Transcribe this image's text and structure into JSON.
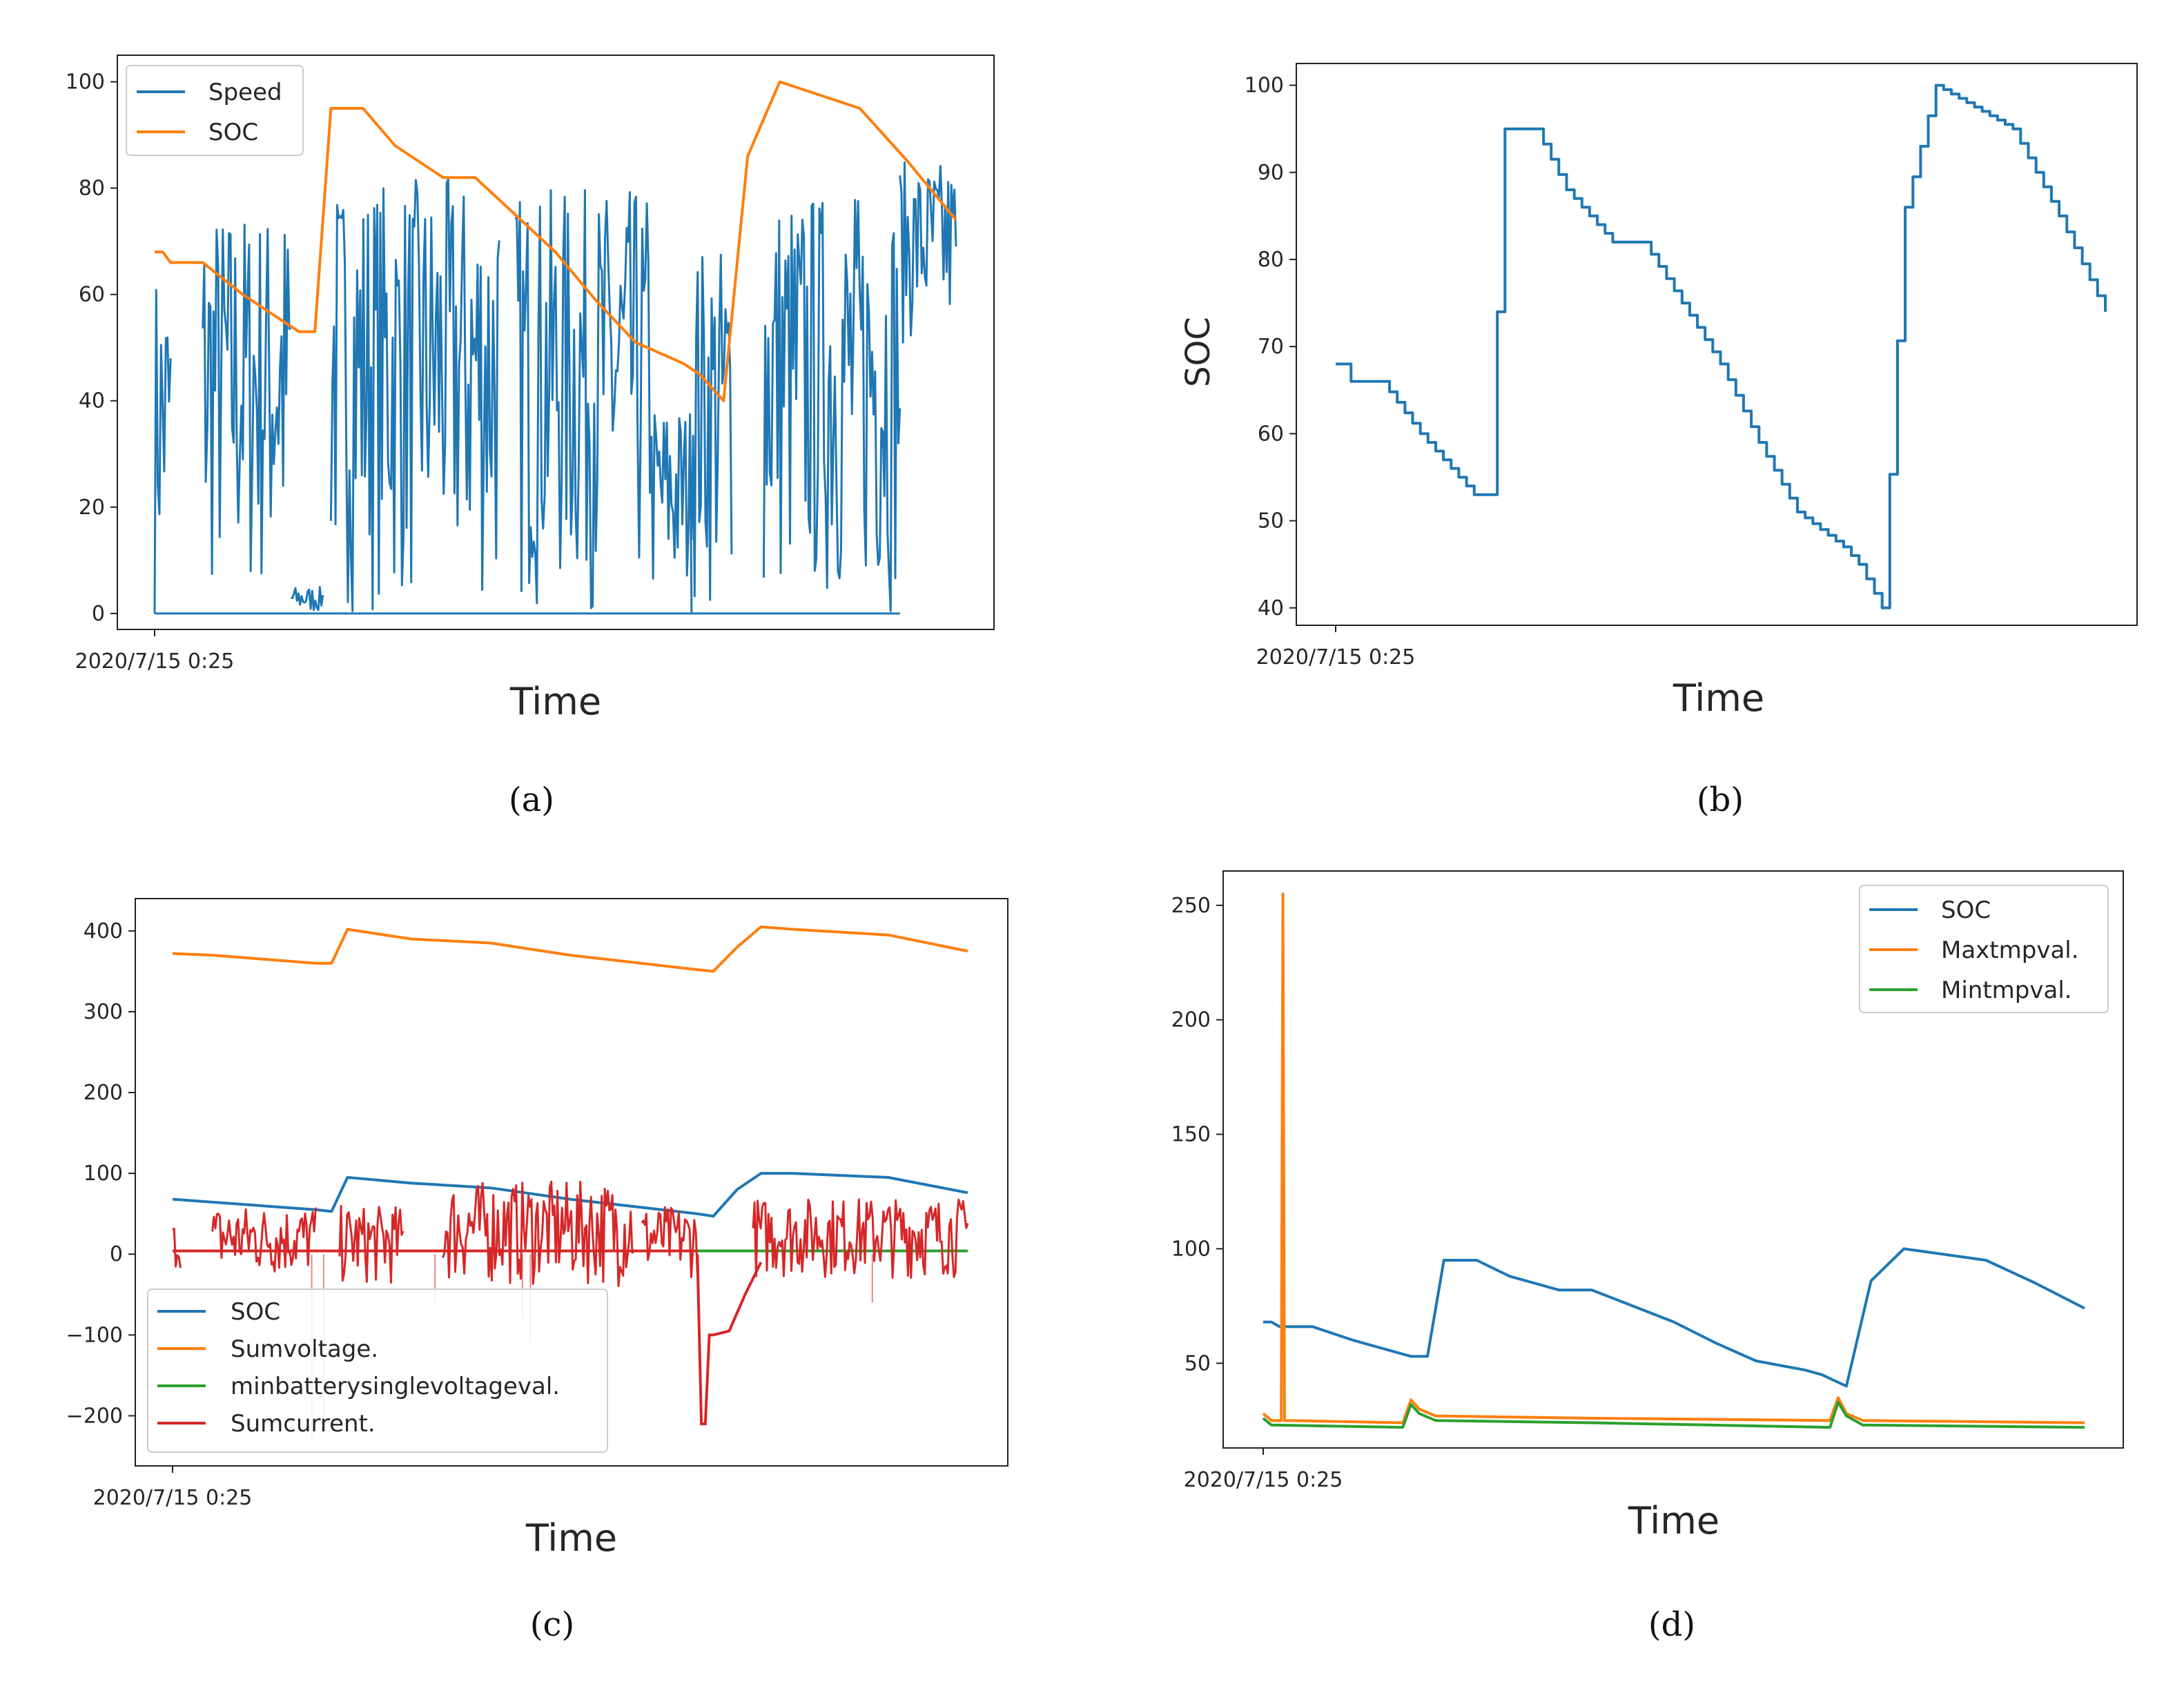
{
  "colors": {
    "blue": "#1f77b4",
    "orange": "#ff7f0e",
    "green": "#2ca02c",
    "red": "#d62728"
  },
  "chart_data": [
    {
      "caption": "(a)",
      "type": "line",
      "xlabel": "Time",
      "ylabel": "",
      "x_tick_label": "2020/7/15 0:25",
      "ylim": [
        -3,
        105
      ],
      "yticks": [
        0,
        20,
        40,
        60,
        80,
        100
      ],
      "legend": "top-left",
      "series": [
        {
          "name": "Speed",
          "color": "#1f77b4",
          "kind": "noise",
          "segments": [
            [
              0.0,
              0.02,
              0,
              65
            ],
            [
              0.06,
              0.17,
              0,
              77
            ],
            [
              0.17,
              0.21,
              0,
              5
            ],
            [
              0.22,
              0.43,
              0,
              82
            ],
            [
              0.45,
              0.62,
              0,
              80
            ],
            [
              0.62,
              0.67,
              0,
              40
            ],
            [
              0.67,
              0.72,
              0,
              70
            ],
            [
              0.76,
              0.93,
              0,
              80
            ],
            [
              0.93,
              1.0,
              50,
              85
            ]
          ]
        },
        {
          "name": "SOC",
          "color": "#ff7f0e",
          "kind": "line",
          "x": [
            0,
            0.01,
            0.02,
            0.06,
            0.11,
            0.16,
            0.18,
            0.2,
            0.22,
            0.26,
            0.3,
            0.36,
            0.4,
            0.45,
            0.5,
            0.55,
            0.6,
            0.66,
            0.68,
            0.71,
            0.74,
            0.78,
            0.82,
            0.88,
            0.91,
            0.94,
            1.0
          ],
          "y": [
            68,
            68,
            66,
            66,
            60,
            55,
            53,
            53,
            95,
            95,
            88,
            82,
            82,
            75,
            68,
            59,
            51,
            47,
            45,
            40,
            86,
            100,
            98,
            95,
            90,
            85,
            74
          ]
        }
      ]
    },
    {
      "caption": "(b)",
      "type": "line",
      "xlabel": "Time",
      "ylabel": "SOC",
      "x_tick_label": "2020/7/15 0:25",
      "ylim": [
        38,
        102.5
      ],
      "yticks": [
        40,
        50,
        60,
        70,
        80,
        90,
        100
      ],
      "legend": "none",
      "series": [
        {
          "name": "SOC",
          "color": "#1f77b4",
          "kind": "step",
          "x": [
            0,
            0.01,
            0.02,
            0.06,
            0.11,
            0.16,
            0.18,
            0.2,
            0.22,
            0.26,
            0.3,
            0.36,
            0.4,
            0.45,
            0.5,
            0.55,
            0.6,
            0.66,
            0.68,
            0.71,
            0.74,
            0.78,
            0.82,
            0.88,
            0.91,
            0.94,
            1.0
          ],
          "y": [
            68,
            68,
            66,
            66,
            60,
            55,
            53,
            53,
            95,
            95,
            88,
            82,
            82,
            75,
            68,
            59,
            51,
            47,
            45,
            40,
            86,
            100,
            98,
            95,
            90,
            85,
            74
          ]
        }
      ]
    },
    {
      "caption": "(c)",
      "type": "line",
      "xlabel": "Time",
      "ylabel": "",
      "x_tick_label": "2020/7/15 0:25",
      "ylim": [
        -262,
        440
      ],
      "yticks": [
        -200,
        -100,
        0,
        100,
        200,
        300,
        400
      ],
      "legend": "bottom-left",
      "series": [
        {
          "name": "SOC",
          "color": "#1f77b4",
          "kind": "line",
          "x": [
            0,
            0.18,
            0.2,
            0.22,
            0.3,
            0.4,
            0.5,
            0.66,
            0.68,
            0.71,
            0.74,
            0.78,
            0.9,
            1.0
          ],
          "y": [
            68,
            55,
            53,
            95,
            88,
            82,
            68,
            50,
            47,
            80,
            100,
            100,
            95,
            76
          ]
        },
        {
          "name": "Sumvoltage.",
          "color": "#ff7f0e",
          "kind": "line",
          "x": [
            0,
            0.05,
            0.18,
            0.2,
            0.22,
            0.3,
            0.4,
            0.5,
            0.66,
            0.68,
            0.71,
            0.74,
            0.78,
            0.9,
            1.0
          ],
          "y": [
            372,
            370,
            360,
            360,
            402,
            390,
            385,
            370,
            352,
            350,
            380,
            405,
            402,
            395,
            375
          ]
        },
        {
          "name": "minbatterysinglevoltageval.",
          "color": "#2ca02c",
          "kind": "line",
          "x": [
            0,
            1.0
          ],
          "y": [
            4,
            4
          ]
        },
        {
          "name": "Sumcurrent.",
          "color": "#d62728",
          "kind": "noise",
          "segments": [
            [
              0.0,
              0.01,
              -20,
              40
            ],
            [
              0.05,
              0.18,
              -30,
              60
            ],
            [
              0.21,
              0.29,
              -40,
              60
            ],
            [
              0.34,
              0.58,
              -40,
              90
            ],
            [
              0.59,
              0.66,
              -30,
              60
            ],
            [
              0.73,
              1.0,
              -30,
              70
            ]
          ],
          "spikes": [
            [
              0.175,
              -230
            ],
            [
              0.19,
              -200
            ],
            [
              0.33,
              -60
            ],
            [
              0.44,
              -80
            ],
            [
              0.45,
              -110
            ],
            [
              0.88,
              -60
            ]
          ],
          "dip": {
            "x": [
              0.66,
              0.665,
              0.67,
              0.675,
              0.68,
              0.7,
              0.72,
              0.74
            ],
            "y": [
              0,
              -210,
              -210,
              -100,
              -100,
              -95,
              -50,
              -10
            ]
          }
        }
      ]
    },
    {
      "caption": "(d)",
      "type": "line",
      "xlabel": "Time",
      "ylabel": "",
      "x_tick_label": "2020/7/15 0:25",
      "ylim": [
        13,
        265
      ],
      "yticks": [
        50,
        100,
        150,
        200,
        250
      ],
      "legend": "top-right",
      "series": [
        {
          "name": "SOC",
          "color": "#1f77b4",
          "kind": "line",
          "x": [
            0,
            0.01,
            0.02,
            0.06,
            0.11,
            0.16,
            0.18,
            0.2,
            0.22,
            0.26,
            0.3,
            0.36,
            0.4,
            0.45,
            0.5,
            0.55,
            0.6,
            0.66,
            0.68,
            0.71,
            0.74,
            0.78,
            0.82,
            0.88,
            0.91,
            0.94,
            1.0
          ],
          "y": [
            68,
            68,
            66,
            66,
            60,
            55,
            53,
            53,
            95,
            95,
            88,
            82,
            82,
            75,
            68,
            59,
            51,
            47,
            45,
            40,
            86,
            100,
            98,
            95,
            90,
            85,
            74
          ]
        },
        {
          "name": "Maxtmpval.",
          "color": "#ff7f0e",
          "kind": "line",
          "x": [
            0,
            0.01,
            0.022,
            0.024,
            0.026,
            0.03,
            0.17,
            0.18,
            0.19,
            0.21,
            0.4,
            0.69,
            0.7,
            0.71,
            0.73,
            1.0
          ],
          "y": [
            28,
            25,
            25,
            255,
            25,
            25,
            24,
            34,
            30,
            27,
            26,
            25,
            35,
            28,
            25,
            24
          ]
        },
        {
          "name": "Mintmpval.",
          "color": "#2ca02c",
          "kind": "line",
          "x": [
            0,
            0.01,
            0.17,
            0.18,
            0.19,
            0.21,
            0.4,
            0.69,
            0.7,
            0.71,
            0.73,
            1.0
          ],
          "y": [
            26,
            23,
            22,
            32,
            28,
            25,
            24,
            22,
            33,
            27,
            23,
            22
          ]
        }
      ]
    }
  ]
}
